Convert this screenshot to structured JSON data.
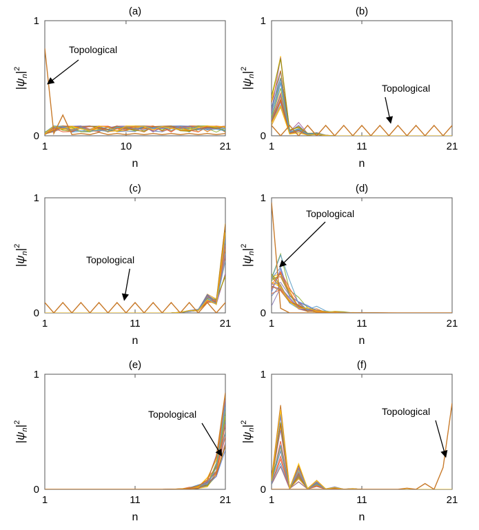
{
  "figure": {
    "series_colors": [
      "#5e81b5",
      "#e19c24",
      "#8fb032",
      "#eb6235",
      "#8778b3",
      "#c56e1a",
      "#5d9ec7",
      "#ffbf00",
      "#a5609d",
      "#929600",
      "#e95536",
      "#6685d9"
    ],
    "topo_color": "#c87a2a",
    "axis_color": "#555555"
  },
  "chart_data": [
    {
      "type": "line",
      "title": "(a)",
      "xlabel": "n",
      "ylabel": "|ψn|2",
      "xlim": [
        1,
        21
      ],
      "ylim": [
        0,
        1
      ],
      "xticks": [
        1,
        10,
        21
      ],
      "yticks": [
        0,
        1
      ],
      "bulk_profile": "uniform",
      "bulk_series_count": 20,
      "bulk_max": 0.09,
      "topological": {
        "x": [
          1,
          2,
          3,
          4,
          5,
          6,
          7,
          8,
          9,
          10,
          11,
          12,
          13,
          14,
          15,
          16,
          17,
          18,
          19,
          20,
          21
        ],
        "y": [
          0.76,
          0.02,
          0.18,
          0.01,
          0.02,
          0.01,
          0.03,
          0.01,
          0.02,
          0.01,
          0.02,
          0.01,
          0.02,
          0.01,
          0.02,
          0.01,
          0.02,
          0.01,
          0.02,
          0.01,
          0.02
        ]
      },
      "annotation": {
        "text": "Topological",
        "target_x": 1.3,
        "target_y": 0.45
      }
    },
    {
      "type": "line",
      "title": "(b)",
      "xlabel": "n",
      "ylabel": "|ψn|2",
      "xlim": [
        1,
        21
      ],
      "ylim": [
        0,
        1
      ],
      "xticks": [
        1,
        11,
        21
      ],
      "yticks": [
        0,
        1
      ],
      "bulk_profile": "left_peak",
      "bulk_series_count": 20,
      "bulk_max": 0.7,
      "topological": {
        "x": [
          1,
          2,
          3,
          4,
          5,
          6,
          7,
          8,
          9,
          10,
          11,
          12,
          13,
          14,
          15,
          16,
          17,
          18,
          19,
          20,
          21
        ],
        "y": [
          0.09,
          0,
          0.09,
          0,
          0.09,
          0,
          0.09,
          0,
          0.09,
          0,
          0.09,
          0,
          0.09,
          0,
          0.09,
          0,
          0.09,
          0,
          0.09,
          0,
          0.09
        ]
      },
      "annotation": {
        "text": "Topological",
        "target_x": 14.2,
        "target_y": 0.11
      }
    },
    {
      "type": "line",
      "title": "(c)",
      "xlabel": "n",
      "ylabel": "|ψn|2",
      "xlim": [
        1,
        21
      ],
      "ylim": [
        0,
        1
      ],
      "xticks": [
        1,
        11,
        21
      ],
      "yticks": [
        0,
        1
      ],
      "bulk_profile": "right_peak",
      "bulk_series_count": 20,
      "bulk_max": 0.83,
      "topological": {
        "x": [
          1,
          2,
          3,
          4,
          5,
          6,
          7,
          8,
          9,
          10,
          11,
          12,
          13,
          14,
          15,
          16,
          17,
          18,
          19,
          20,
          21
        ],
        "y": [
          0.09,
          0,
          0.09,
          0,
          0.09,
          0,
          0.09,
          0,
          0.09,
          0,
          0.09,
          0,
          0.09,
          0,
          0.09,
          0,
          0.09,
          0,
          0.09,
          0,
          0.09
        ]
      },
      "annotation": {
        "text": "Topological",
        "target_x": 9.8,
        "target_y": 0.11
      }
    },
    {
      "type": "line",
      "title": "(d)",
      "xlabel": "n",
      "ylabel": "|ψn|2",
      "xlim": [
        1,
        21
      ],
      "ylim": [
        0,
        1
      ],
      "xticks": [
        1,
        11,
        21
      ],
      "yticks": [
        0,
        1
      ],
      "bulk_profile": "left_decay",
      "bulk_series_count": 20,
      "bulk_max": 0.52,
      "topological": {
        "x": [
          1,
          2,
          3,
          4,
          5,
          6,
          7,
          8,
          9,
          10,
          11,
          12,
          13,
          14,
          15,
          16,
          17,
          18,
          19,
          20,
          21
        ],
        "y": [
          0.96,
          0.04,
          0,
          0,
          0,
          0,
          0,
          0,
          0,
          0,
          0,
          0,
          0,
          0,
          0,
          0,
          0,
          0,
          0,
          0,
          0
        ]
      },
      "annotation": {
        "text": "Topological",
        "target_x": 1.9,
        "target_y": 0.4
      }
    },
    {
      "type": "line",
      "title": "(e)",
      "xlabel": "n",
      "ylabel": "|ψn|2",
      "xlim": [
        1,
        21
      ],
      "ylim": [
        0,
        1
      ],
      "xticks": [
        1,
        11,
        21
      ],
      "yticks": [
        0,
        1
      ],
      "bulk_profile": "right_rise",
      "bulk_series_count": 20,
      "bulk_max": 0.84,
      "topological": {
        "x": [
          1,
          2,
          3,
          4,
          5,
          6,
          7,
          8,
          9,
          10,
          11,
          12,
          13,
          14,
          15,
          16,
          17,
          18,
          19,
          20,
          21
        ],
        "y": [
          0,
          0,
          0,
          0,
          0,
          0,
          0,
          0,
          0,
          0,
          0,
          0,
          0,
          0,
          0,
          0,
          0.01,
          0.03,
          0.08,
          0.28,
          0.84
        ]
      },
      "annotation": {
        "text": "Topological",
        "target_x": 20.6,
        "target_y": 0.29
      }
    },
    {
      "type": "line",
      "title": "(f)",
      "xlabel": "n",
      "ylabel": "|ψn|2",
      "xlim": [
        1,
        21
      ],
      "ylim": [
        0,
        1
      ],
      "xticks": [
        1,
        11,
        21
      ],
      "yticks": [
        0,
        1
      ],
      "bulk_profile": "left_peak_oscillating",
      "bulk_series_count": 20,
      "bulk_max": 0.78,
      "topological": {
        "x": [
          1,
          2,
          3,
          4,
          5,
          6,
          7,
          8,
          9,
          10,
          11,
          12,
          13,
          14,
          15,
          16,
          17,
          18,
          19,
          20,
          21
        ],
        "y": [
          0,
          0,
          0,
          0,
          0,
          0,
          0,
          0,
          0,
          0,
          0,
          0,
          0,
          0,
          0,
          0.01,
          0,
          0.05,
          0,
          0.19,
          0.75
        ]
      },
      "annotation": {
        "text": "Topological",
        "target_x": 20.3,
        "target_y": 0.28
      }
    }
  ]
}
